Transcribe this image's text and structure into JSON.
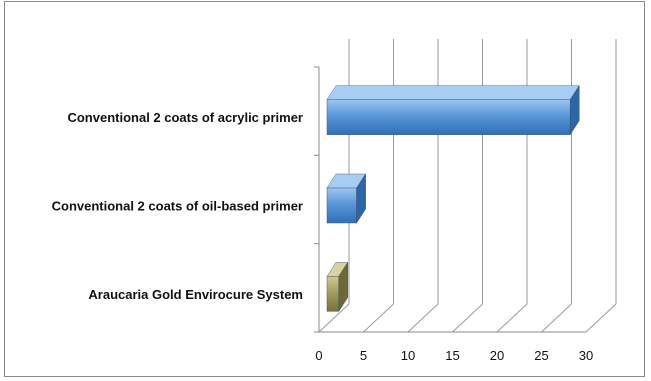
{
  "chart_data": {
    "type": "bar",
    "orientation": "horizontal",
    "style": "3d",
    "title": "",
    "xlabel": "",
    "ylabel": "",
    "xlim": [
      0,
      30
    ],
    "x_ticks": [
      "0",
      "5",
      "10",
      "15",
      "20",
      "25",
      "30"
    ],
    "grid": true,
    "legend": "none",
    "categories": [
      "Conventional 2 coats of acrylic primer",
      "Conventional 2 coats of oil-based primer",
      "Araucaria Gold Envirocure System"
    ],
    "values": [
      28,
      4,
      2
    ],
    "colors": [
      "#5b9bd5",
      "#5b9bd5",
      "#9e9a60"
    ]
  }
}
